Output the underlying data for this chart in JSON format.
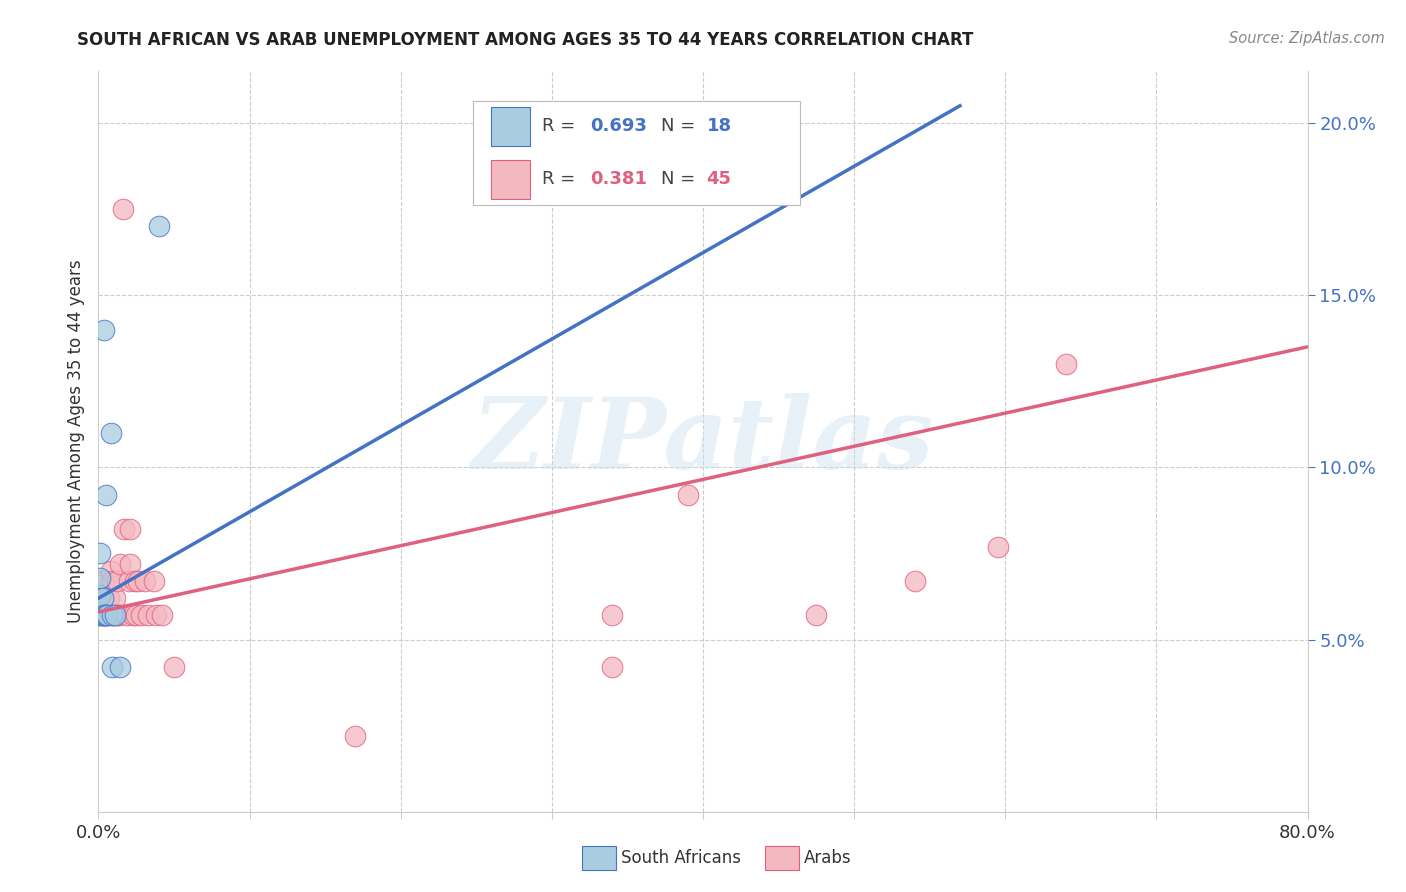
{
  "title": "SOUTH AFRICAN VS ARAB UNEMPLOYMENT AMONG AGES 35 TO 44 YEARS CORRELATION CHART",
  "source": "Source: ZipAtlas.com",
  "ylabel": "Unemployment Among Ages 35 to 44 years",
  "xlim": [
    0.0,
    0.8
  ],
  "ylim": [
    0.0,
    0.215
  ],
  "south_african_color": "#a8cce0",
  "arab_color": "#f4b8c1",
  "south_african_line_color": "#4472c4",
  "arab_line_color": "#e06080",
  "legend_R_sa": "0.693",
  "legend_N_sa": "18",
  "legend_R_arab": "0.381",
  "legend_N_arab": "45",
  "watermark": "ZIPatlas",
  "background_color": "#ffffff",
  "sa_pts_x": [
    0.001,
    0.001,
    0.001,
    0.001,
    0.001,
    0.003,
    0.003,
    0.004,
    0.005,
    0.005,
    0.006,
    0.008,
    0.009,
    0.009,
    0.011,
    0.014,
    0.04,
    0.004
  ],
  "sa_pts_y": [
    0.058,
    0.063,
    0.068,
    0.057,
    0.075,
    0.057,
    0.062,
    0.057,
    0.057,
    0.092,
    0.057,
    0.11,
    0.057,
    0.042,
    0.057,
    0.042,
    0.17,
    0.14
  ],
  "ar_pts_x": [
    0.001,
    0.001,
    0.001,
    0.003,
    0.003,
    0.004,
    0.004,
    0.004,
    0.005,
    0.006,
    0.007,
    0.008,
    0.009,
    0.009,
    0.01,
    0.011,
    0.012,
    0.012,
    0.014,
    0.014,
    0.016,
    0.017,
    0.019,
    0.02,
    0.021,
    0.021,
    0.023,
    0.024,
    0.025,
    0.026,
    0.028,
    0.031,
    0.033,
    0.037,
    0.038,
    0.042,
    0.05,
    0.34,
    0.34,
    0.39,
    0.475,
    0.54,
    0.595,
    0.64,
    0.17
  ],
  "ar_pts_y": [
    0.057,
    0.062,
    0.067,
    0.057,
    0.062,
    0.057,
    0.062,
    0.067,
    0.057,
    0.057,
    0.062,
    0.07,
    0.057,
    0.067,
    0.057,
    0.062,
    0.057,
    0.067,
    0.057,
    0.072,
    0.175,
    0.082,
    0.057,
    0.067,
    0.072,
    0.082,
    0.057,
    0.067,
    0.057,
    0.067,
    0.057,
    0.067,
    0.057,
    0.067,
    0.057,
    0.057,
    0.042,
    0.057,
    0.042,
    0.092,
    0.057,
    0.067,
    0.077,
    0.13,
    0.022
  ],
  "sa_line_x0": 0.0,
  "sa_line_y0": 0.062,
  "sa_line_x1": 0.57,
  "sa_line_y1": 0.205,
  "ar_line_x0": 0.0,
  "ar_line_y0": 0.058,
  "ar_line_x1": 0.8,
  "ar_line_y1": 0.135
}
